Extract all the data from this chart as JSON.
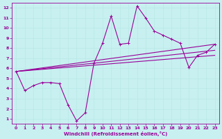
{
  "xlabel": "Windchill (Refroidissement éolien,°C)",
  "background_color": "#c8f0f0",
  "line_color": "#990099",
  "grid_color": "#b8e8e8",
  "xlim": [
    -0.5,
    23.5
  ],
  "ylim": [
    0.5,
    12.5
  ],
  "xticks": [
    0,
    1,
    2,
    3,
    4,
    5,
    6,
    7,
    8,
    9,
    10,
    11,
    12,
    13,
    14,
    15,
    16,
    17,
    18,
    19,
    20,
    21,
    22,
    23
  ],
  "yticks": [
    1,
    2,
    3,
    4,
    5,
    6,
    7,
    8,
    9,
    10,
    11,
    12
  ],
  "series_main": {
    "x": [
      0,
      1,
      2,
      3,
      4,
      5,
      6,
      7,
      8,
      9,
      10,
      11,
      12,
      13,
      14,
      15,
      16,
      17,
      18,
      19,
      20,
      21,
      22,
      23
    ],
    "y": [
      5.7,
      3.8,
      4.3,
      4.6,
      4.6,
      4.5,
      2.4,
      0.8,
      1.6,
      6.5,
      8.5,
      11.2,
      8.4,
      8.5,
      12.2,
      11.0,
      9.7,
      9.3,
      8.9,
      8.5,
      6.1,
      7.3,
      7.6,
      8.4
    ]
  },
  "series_smooth": [
    {
      "x": [
        0,
        23
      ],
      "y": [
        5.7,
        8.4
      ]
    },
    {
      "x": [
        0,
        23
      ],
      "y": [
        5.7,
        7.8
      ]
    },
    {
      "x": [
        0,
        23
      ],
      "y": [
        5.7,
        7.3
      ]
    }
  ]
}
